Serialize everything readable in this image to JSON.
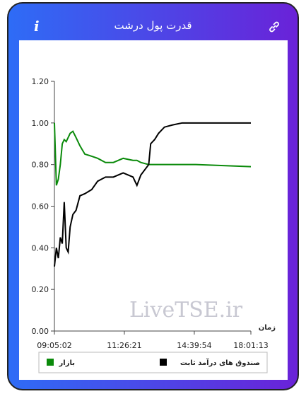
{
  "chart_data": {
    "type": "line",
    "title": "قدرت پول درشت",
    "watermark": "LiveTSE.ir",
    "x_label": "زمان",
    "x": [
      0,
      1,
      2,
      3,
      4,
      5,
      6,
      7,
      8,
      9.4,
      11,
      13,
      15.5,
      19,
      22,
      26,
      30,
      35,
      40,
      42,
      44,
      48,
      49,
      51,
      53,
      56,
      60,
      65,
      72,
      100
    ],
    "xlim": [
      0,
      100
    ],
    "xticks": [
      {
        "value": 0,
        "label": "09:05:02"
      },
      {
        "value": 35.6,
        "label": "11:26:21"
      },
      {
        "value": 71.2,
        "label": "14:39:54"
      },
      {
        "value": 100,
        "label": "18:01:13"
      }
    ],
    "ylim": [
      0,
      1.2
    ],
    "yticks": [
      {
        "value": 0,
        "label": "0.00"
      },
      {
        "value": 0.2,
        "label": "0.20"
      },
      {
        "value": 0.4,
        "label": "0.40"
      },
      {
        "value": 0.6,
        "label": "0.60"
      },
      {
        "value": 0.8,
        "label": "0.80"
      },
      {
        "value": 1.0,
        "label": "1.00"
      },
      {
        "value": 1.2,
        "label": "1.20"
      }
    ],
    "series": [
      {
        "name": "بازار",
        "color": "#0a8a0a",
        "values": [
          1.0,
          0.7,
          0.73,
          0.8,
          0.9,
          0.92,
          0.91,
          0.93,
          0.95,
          0.96,
          0.93,
          0.89,
          0.85,
          0.84,
          0.83,
          0.81,
          0.81,
          0.83,
          0.82,
          0.82,
          0.81,
          0.8,
          0.8,
          0.8,
          0.8,
          0.8,
          0.8,
          0.8,
          0.8,
          0.79
        ]
      },
      {
        "name": "صندوق های درآمد ثابت",
        "color": "#000000",
        "values": [
          0.31,
          0.4,
          0.35,
          0.45,
          0.42,
          0.62,
          0.4,
          0.38,
          0.5,
          0.56,
          0.58,
          0.65,
          0.66,
          0.68,
          0.72,
          0.74,
          0.74,
          0.76,
          0.74,
          0.7,
          0.75,
          0.8,
          0.9,
          0.92,
          0.95,
          0.98,
          0.99,
          1.0,
          1.0,
          1.0
        ]
      }
    ]
  }
}
